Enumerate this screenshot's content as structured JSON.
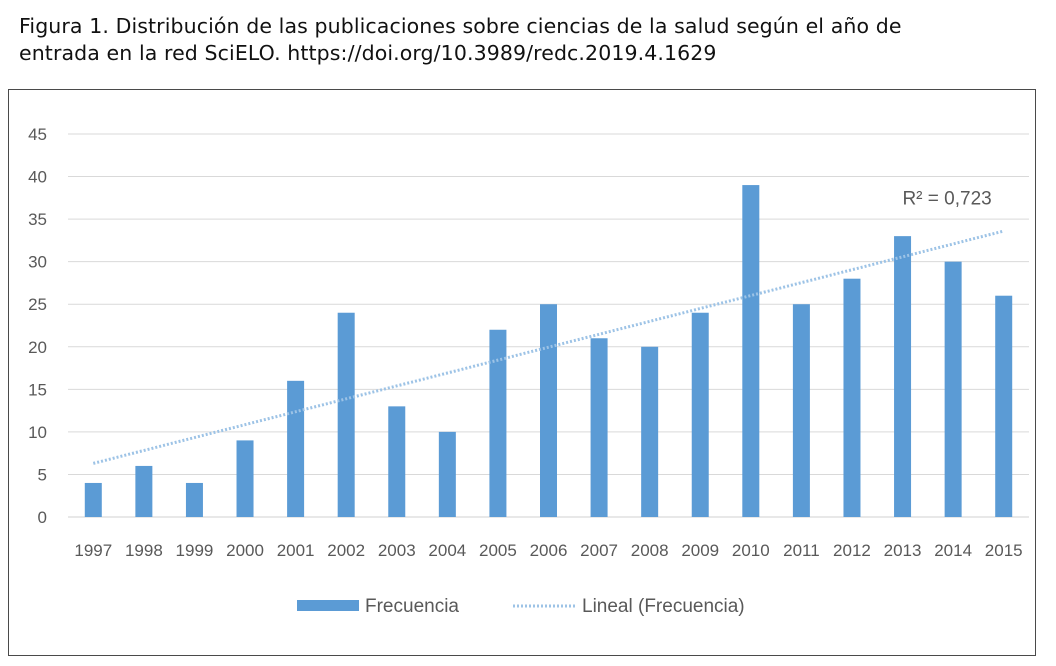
{
  "caption": {
    "line1": "Figura 1. Distribución de las publicaciones sobre ciencias de la salud según el año de",
    "line2": "entrada en la red SciELO. https://doi.org/10.3989/redc.2019.4.1629"
  },
  "chart_data": {
    "type": "bar",
    "categories": [
      "1997",
      "1998",
      "1999",
      "2000",
      "2001",
      "2002",
      "2003",
      "2004",
      "2005",
      "2006",
      "2007",
      "2008",
      "2009",
      "2010",
      "2011",
      "2012",
      "2013",
      "2014",
      "2015"
    ],
    "series": [
      {
        "name": "Frecuencia",
        "values": [
          4,
          6,
          4,
          9,
          16,
          24,
          13,
          10,
          22,
          25,
          21,
          20,
          24,
          39,
          25,
          28,
          33,
          30,
          26
        ],
        "color": "#5b9bd5"
      }
    ],
    "trendline": {
      "name": "Lineal (Frecuencia)",
      "type": "linear",
      "start_value": 6.3,
      "end_value": 33.6,
      "r2_label": "R² = 0,723",
      "color": "#9dc3e6"
    },
    "ylim": [
      0,
      45
    ],
    "yticks": [
      "0",
      "5",
      "10",
      "15",
      "20",
      "25",
      "30",
      "35",
      "40",
      "45"
    ],
    "grid": true,
    "legend_position": "bottom"
  }
}
